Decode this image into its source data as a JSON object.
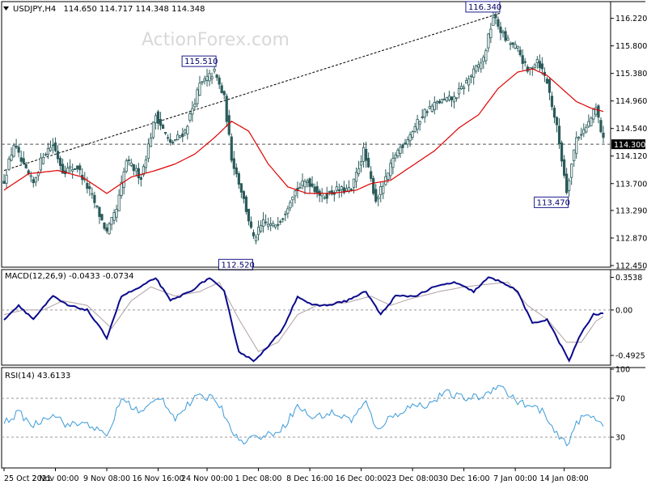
{
  "main_panel": {
    "symbol": "USDJPY,H4",
    "ohlc": "114.650 114.717 114.348 114.348",
    "watermark": "ActionForex.com",
    "current_price_tag": "114.300",
    "annotations": [
      "116.340",
      "115.510",
      "113.470",
      "112.520"
    ]
  },
  "macd_panel": {
    "title": "MACD(12,26,9) -0.0433 -0.0734"
  },
  "rsi_panel": {
    "title": "RSI(14) 43.6133"
  },
  "colors": {
    "candles": "#2b5b5b",
    "sma": "#e00000",
    "macd_main": "#0a0a8c",
    "macd_signal": "#b0a0a0",
    "rsi_line": "#3a9ad9",
    "border": "#000000"
  },
  "chart_data": [
    {
      "type": "candlestick",
      "title": "USDJPY,H4",
      "x_ticks": [
        "25 Oct 2021",
        "2 Nov 00:00",
        "9 Nov 08:00",
        "16 Nov 16:00",
        "24 Nov 00:00",
        "1 Dec 08:00",
        "8 Dec 16:00",
        "16 Dec 00:00",
        "23 Dec 08:00",
        "30 Dec 16:00",
        "7 Jan 00:00",
        "14 Jan 08:00"
      ],
      "y_ticks": [
        116.22,
        115.8,
        115.38,
        114.96,
        114.54,
        114.12,
        113.7,
        113.29,
        112.87,
        112.45
      ],
      "y_tick_labels": [
        "116.220",
        "115.800",
        "115.380",
        "114.960",
        "114.540",
        "114.120",
        "113.700",
        "113.290",
        "112.870",
        "112.450"
      ],
      "ylim": [
        112.45,
        116.45
      ],
      "n_bars": 246,
      "price_anchors": [
        {
          "i": 0,
          "p": 113.75
        },
        {
          "i": 4,
          "p": 114.3
        },
        {
          "i": 8,
          "p": 113.95
        },
        {
          "i": 12,
          "p": 113.7
        },
        {
          "i": 16,
          "p": 114.15
        },
        {
          "i": 20,
          "p": 114.3
        },
        {
          "i": 24,
          "p": 113.9
        },
        {
          "i": 30,
          "p": 113.95
        },
        {
          "i": 36,
          "p": 113.5
        },
        {
          "i": 42,
          "p": 112.95
        },
        {
          "i": 46,
          "p": 113.3
        },
        {
          "i": 50,
          "p": 114.05
        },
        {
          "i": 56,
          "p": 113.8
        },
        {
          "i": 62,
          "p": 114.75
        },
        {
          "i": 68,
          "p": 114.3
        },
        {
          "i": 74,
          "p": 114.5
        },
        {
          "i": 80,
          "p": 115.2
        },
        {
          "i": 86,
          "p": 115.4
        },
        {
          "i": 90,
          "p": 115.0
        },
        {
          "i": 93,
          "p": 114.1
        },
        {
          "i": 97,
          "p": 113.6
        },
        {
          "i": 102,
          "p": 112.85
        },
        {
          "i": 106,
          "p": 113.1
        },
        {
          "i": 110,
          "p": 113.05
        },
        {
          "i": 114,
          "p": 113.2
        },
        {
          "i": 118,
          "p": 113.55
        },
        {
          "i": 124,
          "p": 113.75
        },
        {
          "i": 130,
          "p": 113.5
        },
        {
          "i": 136,
          "p": 113.6
        },
        {
          "i": 142,
          "p": 113.6
        },
        {
          "i": 147,
          "p": 114.2
        },
        {
          "i": 152,
          "p": 113.45
        },
        {
          "i": 156,
          "p": 113.75
        },
        {
          "i": 160,
          "p": 114.15
        },
        {
          "i": 166,
          "p": 114.45
        },
        {
          "i": 172,
          "p": 114.8
        },
        {
          "i": 178,
          "p": 114.95
        },
        {
          "i": 184,
          "p": 115.0
        },
        {
          "i": 190,
          "p": 115.3
        },
        {
          "i": 196,
          "p": 115.6
        },
        {
          "i": 200,
          "p": 116.25
        },
        {
          "i": 205,
          "p": 115.9
        },
        {
          "i": 210,
          "p": 115.75
        },
        {
          "i": 214,
          "p": 115.4
        },
        {
          "i": 218,
          "p": 115.6
        },
        {
          "i": 222,
          "p": 115.25
        },
        {
          "i": 226,
          "p": 114.55
        },
        {
          "i": 230,
          "p": 113.6
        },
        {
          "i": 234,
          "p": 114.4
        },
        {
          "i": 238,
          "p": 114.55
        },
        {
          "i": 242,
          "p": 114.85
        },
        {
          "i": 245,
          "p": 114.35
        }
      ],
      "sma_anchors": [
        {
          "i": 0,
          "p": 113.6
        },
        {
          "i": 10,
          "p": 113.85
        },
        {
          "i": 22,
          "p": 113.9
        },
        {
          "i": 32,
          "p": 113.8
        },
        {
          "i": 42,
          "p": 113.55
        },
        {
          "i": 52,
          "p": 113.8
        },
        {
          "i": 62,
          "p": 113.9
        },
        {
          "i": 70,
          "p": 114.0
        },
        {
          "i": 78,
          "p": 114.15
        },
        {
          "i": 86,
          "p": 114.4
        },
        {
          "i": 93,
          "p": 114.65
        },
        {
          "i": 100,
          "p": 114.5
        },
        {
          "i": 108,
          "p": 114.0
        },
        {
          "i": 116,
          "p": 113.65
        },
        {
          "i": 124,
          "p": 113.55
        },
        {
          "i": 134,
          "p": 113.55
        },
        {
          "i": 144,
          "p": 113.6
        },
        {
          "i": 150,
          "p": 113.7
        },
        {
          "i": 158,
          "p": 113.75
        },
        {
          "i": 166,
          "p": 113.95
        },
        {
          "i": 176,
          "p": 114.2
        },
        {
          "i": 186,
          "p": 114.55
        },
        {
          "i": 194,
          "p": 114.75
        },
        {
          "i": 202,
          "p": 115.15
        },
        {
          "i": 210,
          "p": 115.4
        },
        {
          "i": 216,
          "p": 115.45
        },
        {
          "i": 222,
          "p": 115.35
        },
        {
          "i": 228,
          "p": 115.15
        },
        {
          "i": 234,
          "p": 114.95
        },
        {
          "i": 240,
          "p": 114.85
        },
        {
          "i": 245,
          "p": 114.8
        }
      ],
      "hline": 114.3,
      "trendline": [
        {
          "i": 0,
          "p": 113.9
        },
        {
          "i": 203,
          "p": 116.3
        }
      ],
      "labels": [
        {
          "text": "116.340",
          "i": 202,
          "p": 116.34
        },
        {
          "text": "115.510",
          "i": 86,
          "p": 115.51
        },
        {
          "text": "113.470",
          "i": 230,
          "p": 113.47
        },
        {
          "text": "112.520",
          "i": 101,
          "p": 112.52
        }
      ]
    },
    {
      "type": "line",
      "title": "MACD(12,26,9) -0.0433 -0.0734",
      "y_ticks": [
        0.3538,
        0.0,
        -0.4925
      ],
      "y_tick_labels": [
        "0.3538",
        "0.00",
        "-0.4925"
      ],
      "ylim": [
        -0.58,
        0.42
      ],
      "series": [
        {
          "name": "MACD",
          "anchors": [
            {
              "i": 0,
              "p": -0.1
            },
            {
              "i": 6,
              "p": 0.05
            },
            {
              "i": 12,
              "p": -0.1
            },
            {
              "i": 20,
              "p": 0.15
            },
            {
              "i": 26,
              "p": 0.05
            },
            {
              "i": 34,
              "p": 0.0
            },
            {
              "i": 42,
              "p": -0.3
            },
            {
              "i": 48,
              "p": 0.15
            },
            {
              "i": 56,
              "p": 0.25
            },
            {
              "i": 62,
              "p": 0.35
            },
            {
              "i": 68,
              "p": 0.1
            },
            {
              "i": 76,
              "p": 0.2
            },
            {
              "i": 84,
              "p": 0.35
            },
            {
              "i": 90,
              "p": 0.2
            },
            {
              "i": 96,
              "p": -0.45
            },
            {
              "i": 102,
              "p": -0.55
            },
            {
              "i": 108,
              "p": -0.4
            },
            {
              "i": 114,
              "p": -0.2
            },
            {
              "i": 120,
              "p": 0.15
            },
            {
              "i": 126,
              "p": 0.05
            },
            {
              "i": 132,
              "p": 0.05
            },
            {
              "i": 140,
              "p": 0.1
            },
            {
              "i": 148,
              "p": 0.2
            },
            {
              "i": 154,
              "p": -0.05
            },
            {
              "i": 160,
              "p": 0.15
            },
            {
              "i": 168,
              "p": 0.15
            },
            {
              "i": 176,
              "p": 0.25
            },
            {
              "i": 184,
              "p": 0.3
            },
            {
              "i": 192,
              "p": 0.2
            },
            {
              "i": 198,
              "p": 0.35
            },
            {
              "i": 204,
              "p": 0.3
            },
            {
              "i": 210,
              "p": 0.2
            },
            {
              "i": 216,
              "p": -0.15
            },
            {
              "i": 222,
              "p": -0.1
            },
            {
              "i": 228,
              "p": -0.4
            },
            {
              "i": 231,
              "p": -0.55
            },
            {
              "i": 236,
              "p": -0.25
            },
            {
              "i": 241,
              "p": -0.05
            },
            {
              "i": 245,
              "p": -0.04
            }
          ]
        },
        {
          "name": "Signal",
          "anchors": [
            {
              "i": 0,
              "p": -0.05
            },
            {
              "i": 8,
              "p": 0.0
            },
            {
              "i": 16,
              "p": 0.0
            },
            {
              "i": 24,
              "p": 0.1
            },
            {
              "i": 34,
              "p": 0.05
            },
            {
              "i": 44,
              "p": -0.2
            },
            {
              "i": 52,
              "p": 0.1
            },
            {
              "i": 60,
              "p": 0.25
            },
            {
              "i": 70,
              "p": 0.15
            },
            {
              "i": 80,
              "p": 0.2
            },
            {
              "i": 88,
              "p": 0.3
            },
            {
              "i": 96,
              "p": -0.1
            },
            {
              "i": 104,
              "p": -0.45
            },
            {
              "i": 112,
              "p": -0.35
            },
            {
              "i": 120,
              "p": -0.05
            },
            {
              "i": 128,
              "p": 0.05
            },
            {
              "i": 140,
              "p": 0.08
            },
            {
              "i": 150,
              "p": 0.15
            },
            {
              "i": 158,
              "p": 0.05
            },
            {
              "i": 166,
              "p": 0.12
            },
            {
              "i": 178,
              "p": 0.2
            },
            {
              "i": 188,
              "p": 0.25
            },
            {
              "i": 198,
              "p": 0.28
            },
            {
              "i": 206,
              "p": 0.3
            },
            {
              "i": 214,
              "p": 0.05
            },
            {
              "i": 222,
              "p": -0.1
            },
            {
              "i": 230,
              "p": -0.35
            },
            {
              "i": 236,
              "p": -0.35
            },
            {
              "i": 242,
              "p": -0.12
            },
            {
              "i": 245,
              "p": -0.07
            }
          ]
        }
      ]
    },
    {
      "type": "line",
      "title": "RSI(14) 43.6133",
      "y_ticks": [
        100,
        70,
        30
      ],
      "y_tick_labels": [
        "100",
        "70",
        "30"
      ],
      "ylim": [
        0,
        100
      ],
      "series": [
        {
          "name": "RSI",
          "anchors": [
            {
              "i": 0,
              "p": 45
            },
            {
              "i": 6,
              "p": 55
            },
            {
              "i": 12,
              "p": 42
            },
            {
              "i": 20,
              "p": 55
            },
            {
              "i": 26,
              "p": 42
            },
            {
              "i": 34,
              "p": 45
            },
            {
              "i": 42,
              "p": 30
            },
            {
              "i": 48,
              "p": 70
            },
            {
              "i": 56,
              "p": 55
            },
            {
              "i": 64,
              "p": 72
            },
            {
              "i": 70,
              "p": 50
            },
            {
              "i": 78,
              "p": 70
            },
            {
              "i": 86,
              "p": 72
            },
            {
              "i": 92,
              "p": 45
            },
            {
              "i": 96,
              "p": 25
            },
            {
              "i": 102,
              "p": 30
            },
            {
              "i": 108,
              "p": 32
            },
            {
              "i": 114,
              "p": 40
            },
            {
              "i": 120,
              "p": 62
            },
            {
              "i": 126,
              "p": 50
            },
            {
              "i": 134,
              "p": 55
            },
            {
              "i": 142,
              "p": 48
            },
            {
              "i": 148,
              "p": 66
            },
            {
              "i": 152,
              "p": 38
            },
            {
              "i": 158,
              "p": 50
            },
            {
              "i": 166,
              "p": 62
            },
            {
              "i": 174,
              "p": 64
            },
            {
              "i": 180,
              "p": 76
            },
            {
              "i": 188,
              "p": 70
            },
            {
              "i": 196,
              "p": 72
            },
            {
              "i": 202,
              "p": 85
            },
            {
              "i": 208,
              "p": 70
            },
            {
              "i": 214,
              "p": 62
            },
            {
              "i": 220,
              "p": 58
            },
            {
              "i": 224,
              "p": 38
            },
            {
              "i": 230,
              "p": 22
            },
            {
              "i": 234,
              "p": 45
            },
            {
              "i": 238,
              "p": 52
            },
            {
              "i": 242,
              "p": 50
            },
            {
              "i": 245,
              "p": 43.6
            }
          ]
        }
      ]
    }
  ]
}
